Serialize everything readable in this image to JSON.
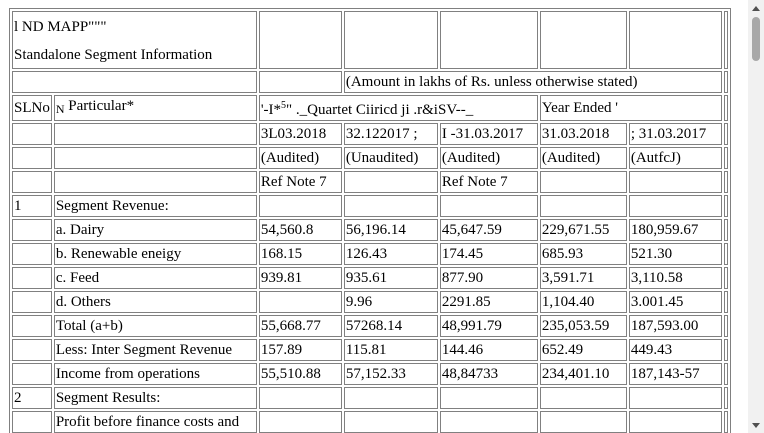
{
  "header": {
    "title_line1": "l ND MAPP\"\"\"",
    "title_line2": "Standalone Segment Information",
    "amount_note": "(Amount in lakhs of Rs. unless otherwise stated)"
  },
  "columns": {
    "slno": "SLNo",
    "particular_prefix": "N",
    "particular": " Particular*",
    "quarter_group_a": "'-I*",
    "quarter_group_sup": "5",
    "quarter_group_b": "\" ._Quartet Ciiricd ji .r&iSV--_",
    "year_group": "Year Ended '",
    "dates": [
      "3L03.2018",
      "32.122017 ;",
      "I -31.03.2017",
      "31.03.2018",
      "; 31.03.2017"
    ],
    "audit": [
      "(Audited)",
      "(Unaudited)",
      "(Audited)",
      "(Audited)",
      "(AutfcJ)"
    ],
    "ref_notes": [
      "Ref Note 7",
      "",
      "Ref Note 7",
      "",
      ""
    ]
  },
  "rows": [
    {
      "sl": "1",
      "particular": "Segment Revenue:",
      "values": [
        "",
        "",
        "",
        "",
        ""
      ]
    },
    {
      "sl": "",
      "particular": "a. Dairy",
      "values": [
        "54,560.8",
        "56,196.14",
        "45,647.59",
        "229,671.55",
        "180,959.67"
      ]
    },
    {
      "sl": "",
      "particular": "b. Renewable eneigy",
      "values": [
        "168.15",
        "126.43",
        "174.45",
        "685.93",
        "521.30"
      ]
    },
    {
      "sl": "",
      "particular": "c. Feed",
      "values": [
        "939.81",
        "935.61",
        "877.90",
        "3,591.71",
        "3,110.58"
      ]
    },
    {
      "sl": "",
      "particular": "d. Others",
      "values": [
        "",
        "9.96",
        "2291.85",
        "1,104.40",
        "3.001.45"
      ]
    },
    {
      "sl": "",
      "particular": "Total (a+b)",
      "values": [
        "55,668.77",
        "57268.14",
        "48,991.79",
        "235,053.59",
        "187,593.00"
      ]
    },
    {
      "sl": "",
      "particular": "Less: Inter Segment Revenue",
      "values": [
        "157.89",
        "115.81",
        "144.46",
        "652.49",
        "449.43"
      ]
    },
    {
      "sl": "",
      "particular": "Income from operations",
      "values": [
        "55,510.88",
        "57,152.33",
        "48,84733",
        "234,401.10",
        "187,143-57"
      ]
    },
    {
      "sl": "2",
      "particular": "Segment Results:",
      "values": [
        "",
        "",
        "",
        "",
        ""
      ]
    },
    {
      "sl": "",
      "particular": "Profit before finance costs and",
      "values": [
        "",
        "",
        "",
        "",
        ""
      ]
    }
  ]
}
